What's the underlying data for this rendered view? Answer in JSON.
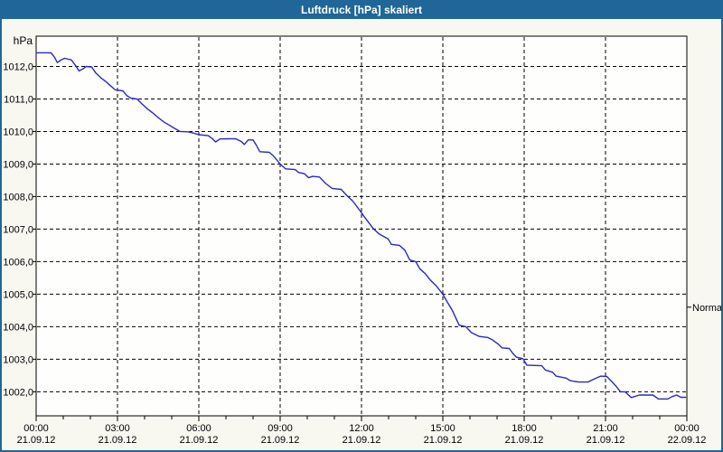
{
  "window": {
    "title": "Luftdruck [hPa] skaliert",
    "titlebar_color": "#206698",
    "background_color": "#F8F8F1"
  },
  "chart_data": {
    "type": "line",
    "title": "Luftdruck [hPa] skaliert",
    "ylabel": "hPa",
    "xlabel": "",
    "grid": "dashed",
    "legend_position": "none",
    "plot_background": "#FEFEFC",
    "grid_color": "#000000",
    "ylim": [
      1001.26,
      1012.93
    ],
    "xlim_hours": [
      0,
      24
    ],
    "y_ticks": [
      {
        "value": 1012,
        "label": "1012,0"
      },
      {
        "value": 1011,
        "label": "1011,0"
      },
      {
        "value": 1010,
        "label": "1010,0"
      },
      {
        "value": 1009,
        "label": "1009,0"
      },
      {
        "value": 1008,
        "label": "1008,0"
      },
      {
        "value": 1007,
        "label": "1007,0"
      },
      {
        "value": 1006,
        "label": "1006,0"
      },
      {
        "value": 1005,
        "label": "1005,0"
      },
      {
        "value": 1004,
        "label": "1004,0"
      },
      {
        "value": 1003,
        "label": "1003,0"
      },
      {
        "value": 1002,
        "label": "1002,0"
      }
    ],
    "x_major_ticks": [
      {
        "hour": 0,
        "time": "00:00",
        "date": "21.09.12"
      },
      {
        "hour": 3,
        "time": "03:00",
        "date": "21.09.12"
      },
      {
        "hour": 6,
        "time": "06:00",
        "date": "21.09.12"
      },
      {
        "hour": 9,
        "time": "09:00",
        "date": "21.09.12"
      },
      {
        "hour": 12,
        "time": "12:00",
        "date": "21.09.12"
      },
      {
        "hour": 15,
        "time": "15:00",
        "date": "21.09.12"
      },
      {
        "hour": 18,
        "time": "18:00",
        "date": "21.09.12"
      },
      {
        "hour": 21,
        "time": "21:00",
        "date": "21.09.12"
      },
      {
        "hour": 24,
        "time": "00:00",
        "date": "22.09.12"
      }
    ],
    "x_minor_tick_every_hours": 1,
    "annotations": [
      {
        "label": "Normal",
        "value": 1004.6,
        "side": "right"
      }
    ],
    "series": [
      {
        "name": "Luftdruck",
        "unit": "hPa",
        "color": "#2828C8",
        "points": [
          [
            0.0,
            1012.42
          ],
          [
            0.55,
            1012.42
          ],
          [
            0.68,
            1012.28
          ],
          [
            0.78,
            1012.12
          ],
          [
            0.92,
            1012.2
          ],
          [
            1.05,
            1012.25
          ],
          [
            1.3,
            1012.2
          ],
          [
            1.45,
            1012.03
          ],
          [
            1.58,
            1011.86
          ],
          [
            1.72,
            1011.92
          ],
          [
            1.85,
            1012.0
          ],
          [
            2.05,
            1011.98
          ],
          [
            2.2,
            1011.8
          ],
          [
            2.4,
            1011.64
          ],
          [
            2.58,
            1011.53
          ],
          [
            2.72,
            1011.42
          ],
          [
            2.92,
            1011.28
          ],
          [
            3.2,
            1011.25
          ],
          [
            3.35,
            1011.1
          ],
          [
            3.5,
            1011.02
          ],
          [
            3.72,
            1011.0
          ],
          [
            3.9,
            1010.85
          ],
          [
            4.1,
            1010.7
          ],
          [
            4.3,
            1010.57
          ],
          [
            4.5,
            1010.43
          ],
          [
            4.7,
            1010.3
          ],
          [
            4.9,
            1010.2
          ],
          [
            5.1,
            1010.1
          ],
          [
            5.3,
            1010.0
          ],
          [
            5.6,
            1009.99
          ],
          [
            5.8,
            1009.95
          ],
          [
            6.0,
            1009.9
          ],
          [
            6.35,
            1009.87
          ],
          [
            6.5,
            1009.78
          ],
          [
            6.62,
            1009.68
          ],
          [
            6.78,
            1009.77
          ],
          [
            7.35,
            1009.78
          ],
          [
            7.55,
            1009.7
          ],
          [
            7.68,
            1009.6
          ],
          [
            7.82,
            1009.74
          ],
          [
            8.0,
            1009.74
          ],
          [
            8.12,
            1009.58
          ],
          [
            8.25,
            1009.38
          ],
          [
            8.6,
            1009.36
          ],
          [
            8.75,
            1009.25
          ],
          [
            8.9,
            1009.1
          ],
          [
            9.0,
            1009.0
          ],
          [
            9.2,
            1008.85
          ],
          [
            9.55,
            1008.83
          ],
          [
            9.68,
            1008.74
          ],
          [
            9.9,
            1008.7
          ],
          [
            10.05,
            1008.58
          ],
          [
            10.2,
            1008.62
          ],
          [
            10.45,
            1008.6
          ],
          [
            10.68,
            1008.4
          ],
          [
            10.92,
            1008.25
          ],
          [
            11.25,
            1008.22
          ],
          [
            11.45,
            1008.04
          ],
          [
            11.68,
            1007.86
          ],
          [
            11.95,
            1007.56
          ],
          [
            12.1,
            1007.38
          ],
          [
            12.45,
            1007.0
          ],
          [
            12.65,
            1006.85
          ],
          [
            12.98,
            1006.7
          ],
          [
            13.1,
            1006.53
          ],
          [
            13.4,
            1006.5
          ],
          [
            13.6,
            1006.35
          ],
          [
            13.78,
            1006.05
          ],
          [
            14.0,
            1006.0
          ],
          [
            14.15,
            1005.78
          ],
          [
            14.35,
            1005.63
          ],
          [
            14.52,
            1005.45
          ],
          [
            14.75,
            1005.26
          ],
          [
            15.0,
            1005.0
          ],
          [
            15.12,
            1004.82
          ],
          [
            15.35,
            1004.5
          ],
          [
            15.6,
            1004.05
          ],
          [
            15.85,
            1004.0
          ],
          [
            16.05,
            1003.82
          ],
          [
            16.35,
            1003.7
          ],
          [
            16.65,
            1003.67
          ],
          [
            16.82,
            1003.6
          ],
          [
            17.05,
            1003.46
          ],
          [
            17.18,
            1003.35
          ],
          [
            17.45,
            1003.33
          ],
          [
            17.58,
            1003.18
          ],
          [
            17.72,
            1003.06
          ],
          [
            17.95,
            1003.02
          ],
          [
            18.1,
            1002.82
          ],
          [
            18.65,
            1002.8
          ],
          [
            18.78,
            1002.67
          ],
          [
            19.05,
            1002.6
          ],
          [
            19.18,
            1002.48
          ],
          [
            19.55,
            1002.42
          ],
          [
            19.7,
            1002.34
          ],
          [
            20.0,
            1002.3
          ],
          [
            20.35,
            1002.3
          ],
          [
            20.6,
            1002.4
          ],
          [
            20.82,
            1002.48
          ],
          [
            21.05,
            1002.47
          ],
          [
            21.25,
            1002.3
          ],
          [
            21.42,
            1002.14
          ],
          [
            21.55,
            1002.0
          ],
          [
            21.72,
            1002.0
          ],
          [
            21.95,
            1001.82
          ],
          [
            22.25,
            1001.9
          ],
          [
            22.75,
            1001.9
          ],
          [
            22.95,
            1001.78
          ],
          [
            23.3,
            1001.78
          ],
          [
            23.45,
            1001.85
          ],
          [
            23.62,
            1001.9
          ],
          [
            23.78,
            1001.83
          ],
          [
            23.95,
            1001.83
          ]
        ]
      }
    ]
  }
}
